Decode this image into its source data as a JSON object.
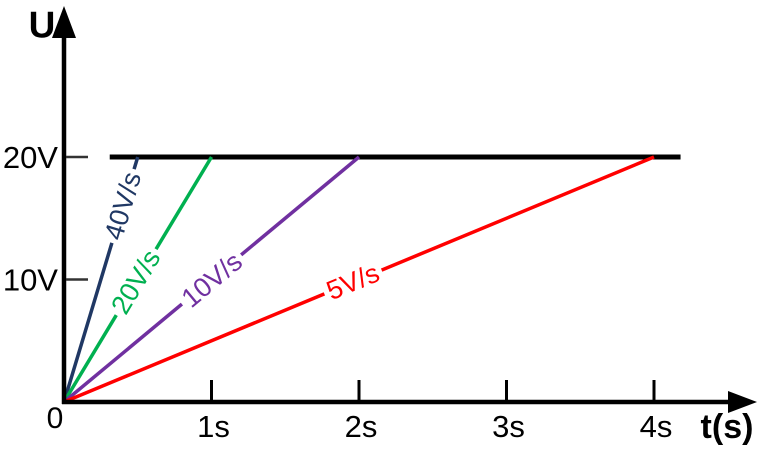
{
  "chart_data": {
    "type": "line",
    "title": "",
    "xlabel": "t(s)",
    "ylabel": "U",
    "origin_label": "0",
    "xlim": [
      0,
      4.7
    ],
    "ylim": [
      0,
      32
    ],
    "grid": false,
    "legend": "inline labels on lines",
    "x_ticks": [
      {
        "t": 1,
        "label": "1s"
      },
      {
        "t": 2,
        "label": "2s"
      },
      {
        "t": 3,
        "label": "3s"
      },
      {
        "t": 4,
        "label": "4s"
      }
    ],
    "y_ticks": [
      {
        "u": 10,
        "label": "10V"
      },
      {
        "u": 20,
        "label": "20V"
      }
    ],
    "plateau_line": {
      "u": 20,
      "t_start": 0.31,
      "t_end": 4.18,
      "color": "#000000"
    },
    "series": [
      {
        "name": "40V/s",
        "slope_v_per_s": 40,
        "color": "#203864",
        "points": [
          [
            0,
            0
          ],
          [
            0.5,
            20
          ]
        ],
        "label_at_u": 16
      },
      {
        "name": "20V/s",
        "slope_v_per_s": 20,
        "color": "#00b050",
        "points": [
          [
            0,
            0
          ],
          [
            1,
            20
          ]
        ],
        "label_at_u": 9.8
      },
      {
        "name": "10V/s",
        "slope_v_per_s": 10,
        "color": "#7030a0",
        "points": [
          [
            0,
            0
          ],
          [
            2,
            20
          ]
        ],
        "label_at_u": 10
      },
      {
        "name": "5V/s",
        "slope_v_per_s": 5,
        "color": "#ff0000",
        "points": [
          [
            0,
            0
          ],
          [
            4,
            20
          ]
        ],
        "label_at_u": 9.8
      }
    ],
    "axis_color": "#000000"
  }
}
